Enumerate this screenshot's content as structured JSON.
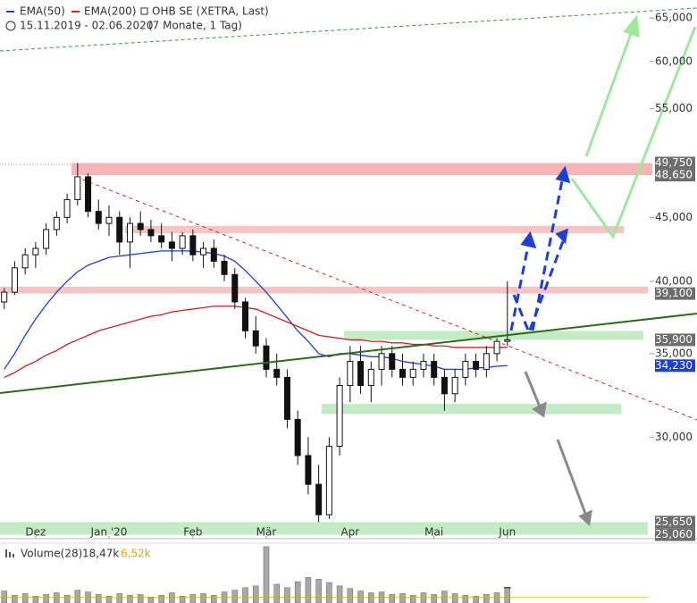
{
  "chart_data": {
    "type": "candlestick",
    "title": "OHB SE (XETRA, Last)",
    "subtitle": "15.11.2019 - 02.06.2020",
    "period": "(7 Monate, 1 Tag)",
    "log_scale": true,
    "ylim": [
      25000,
      67200
    ],
    "yticks": [
      {
        "value": 30000,
        "label": "30,000"
      },
      {
        "value": 35000,
        "label": "35,000"
      },
      {
        "value": 40000,
        "label": "40,000"
      },
      {
        "value": 45000,
        "label": "45,000"
      },
      {
        "value": 55000,
        "label": "55,000"
      },
      {
        "value": 60000,
        "label": "60,000"
      },
      {
        "value": 65000,
        "label": "65,000"
      }
    ],
    "xlim": [
      -0.4,
      61.4
    ],
    "xticks": [
      {
        "value": 3,
        "label": "Dez"
      },
      {
        "value": 10,
        "label": "Jan '20"
      },
      {
        "value": 18,
        "label": "Feb"
      },
      {
        "value": 25,
        "label": "Mär"
      },
      {
        "value": 33,
        "label": "Apr"
      },
      {
        "value": 41,
        "label": "Mai"
      },
      {
        "value": 48,
        "label": "Jun"
      }
    ],
    "candles": {
      "open": [
        38500,
        39200,
        41000,
        42000,
        42500,
        44000,
        45000,
        46500,
        48500,
        45500,
        44500,
        45000,
        43000,
        44500,
        44000,
        43500,
        43000,
        42500,
        43500,
        42000,
        42500,
        41500,
        40500,
        38500,
        36500,
        35500,
        34000,
        33500,
        31000,
        29000,
        27500,
        26000,
        29500,
        33000,
        34500,
        33000,
        34000,
        35000,
        34000,
        33500,
        34000,
        34500,
        33500,
        32500,
        33500,
        34500,
        34000,
        35000,
        35800
      ],
      "high": [
        39500,
        41500,
        42500,
        43000,
        44500,
        45500,
        47000,
        49750,
        48800,
        46500,
        46000,
        45500,
        45000,
        45500,
        44800,
        44500,
        43800,
        43800,
        44000,
        43000,
        43200,
        42000,
        41000,
        38800,
        37500,
        36000,
        35000,
        34000,
        31500,
        30000,
        28500,
        30000,
        33500,
        35500,
        35500,
        34500,
        35500,
        35500,
        35000,
        34500,
        35000,
        35000,
        34000,
        34000,
        35000,
        35000,
        35500,
        36000,
        40000
      ],
      "low": [
        38000,
        39000,
        40500,
        41000,
        42000,
        43500,
        44500,
        46000,
        45000,
        44000,
        43500,
        42000,
        41000,
        43500,
        43000,
        42500,
        41500,
        42000,
        41500,
        41000,
        41000,
        40000,
        38000,
        36000,
        35000,
        33500,
        33000,
        30500,
        28500,
        27000,
        25650,
        25800,
        29000,
        32000,
        32500,
        32000,
        33000,
        33500,
        33000,
        33000,
        33500,
        33000,
        31500,
        32000,
        33000,
        33500,
        33500,
        34500,
        35500
      ],
      "close": [
        39200,
        41000,
        42000,
        42500,
        44000,
        45000,
        46500,
        48500,
        45500,
        44500,
        45000,
        43000,
        44500,
        44000,
        43500,
        43000,
        42500,
        43500,
        42000,
        42500,
        41500,
        40500,
        38500,
        36500,
        35500,
        34000,
        33500,
        31000,
        29000,
        27500,
        26000,
        29500,
        33000,
        34500,
        33000,
        34000,
        35000,
        34000,
        33500,
        34000,
        34500,
        33500,
        32500,
        33500,
        34500,
        34000,
        35000,
        35800,
        35900
      ]
    },
    "series": [
      {
        "name": "EMA(50)",
        "color": "#1c3fd4",
        "values": [
          34000,
          35000,
          36200,
          37300,
          38300,
          39200,
          40000,
          40700,
          41200,
          41500,
          41800,
          41900,
          42000,
          42100,
          42200,
          42300,
          42300,
          42300,
          42300,
          42200,
          42100,
          41900,
          41500,
          40800,
          40000,
          39200,
          38300,
          37400,
          36500,
          35800,
          35000,
          34800,
          35000,
          35000,
          34900,
          34800,
          34800,
          34700,
          34500,
          34400,
          34300,
          34200,
          34000,
          34000,
          34000,
          34100,
          34100,
          34200,
          34230
        ]
      },
      {
        "name": "EMA(200)",
        "color": "#d42020",
        "values": [
          33500,
          33800,
          34200,
          34500,
          34900,
          35200,
          35600,
          35900,
          36200,
          36500,
          36700,
          36900,
          37100,
          37300,
          37500,
          37600,
          37800,
          37900,
          38000,
          38100,
          38200,
          38200,
          38200,
          38100,
          38000,
          37700,
          37400,
          37100,
          36800,
          36500,
          36200,
          36100,
          36000,
          35900,
          35900,
          35800,
          35800,
          35700,
          35700,
          35600,
          35600,
          35500,
          35500,
          35400,
          35400,
          35400,
          35400,
          35400,
          35400
        ]
      }
    ],
    "zones": [
      {
        "low": 48650,
        "high": 49750,
        "color": "#f7b5b5"
      },
      {
        "low": 43700,
        "high": 44300,
        "color": "#f7c4c4"
      },
      {
        "low": 39100,
        "high": 39600,
        "color": "#f7c4c4"
      },
      {
        "low": 35900,
        "high": 36500,
        "color": "#c4ecc4"
      },
      {
        "low": 31300,
        "high": 31900,
        "color": "#c4ecc4"
      },
      {
        "low": 25060,
        "high": 25650,
        "color": "#c4ecc4"
      }
    ],
    "levels": [
      {
        "value": 49750,
        "label": "49,750",
        "color": "#6d6d6d"
      },
      {
        "value": 48650,
        "label": "48,650",
        "color": "#6d6d6d"
      },
      {
        "value": 39100,
        "label": "39,100",
        "color": "#6d6d6d"
      },
      {
        "value": 35900,
        "label": "35,900",
        "color": "#6d6d6d"
      },
      {
        "value": 34230,
        "label": "34,230",
        "color": "#1c3fd4"
      },
      {
        "value": 25650,
        "label": "25,650",
        "color": "#6d6d6d"
      },
      {
        "value": 25060,
        "label": "25,060",
        "color": "#6d6d6d"
      }
    ],
    "volume": {
      "name": "Volume(28)",
      "ylim": [
        0,
        68
      ],
      "color": "#a8a8a8",
      "last": {
        "value": 18.47,
        "label": "18,47k"
      },
      "average": {
        "value": 6.52,
        "label": "6,52k"
      },
      "values": [
        14,
        9,
        11,
        8,
        10,
        12,
        9,
        15,
        13,
        10,
        8,
        11,
        9,
        10,
        7,
        9,
        12,
        8,
        10,
        11,
        9,
        13,
        15,
        18,
        20,
        66,
        22,
        18,
        25,
        30,
        28,
        24,
        20,
        17,
        14,
        12,
        13,
        10,
        11,
        9,
        12,
        10,
        14,
        11,
        9,
        8,
        10,
        12,
        18.47
      ]
    }
  }
}
